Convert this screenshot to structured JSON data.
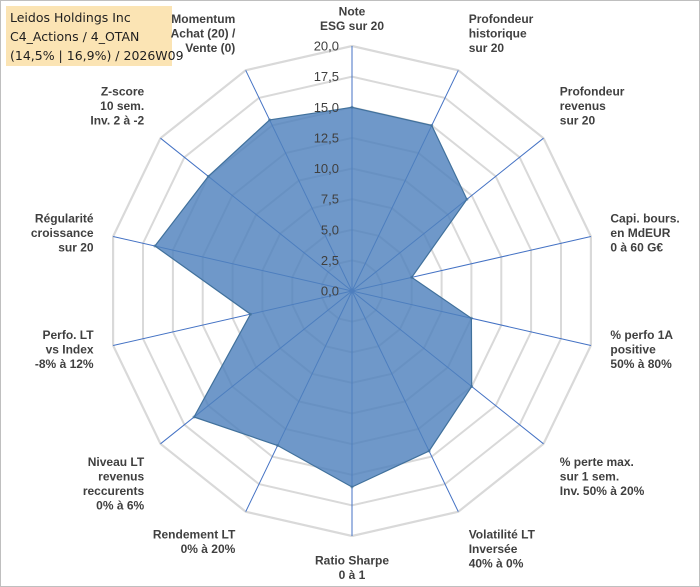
{
  "title": {
    "company": "Leidos Holdings Inc",
    "portfolio": "C4_Actions / 4_OTAN",
    "summary": "(14,5% | 16,9%) / 2026W09"
  },
  "chart_data": {
    "type": "radar",
    "rmin": 0,
    "rmax": 20,
    "ticks": [
      "0,0",
      "2,5",
      "5,0",
      "7,5",
      "10,0",
      "12,5",
      "15,0",
      "17,5",
      "20,0"
    ],
    "tick_values": [
      0,
      2.5,
      5,
      7.5,
      10,
      12.5,
      15,
      17.5,
      20
    ],
    "axes": [
      [
        "Note",
        "ESG sur 20"
      ],
      [
        "Profondeur",
        "historique",
        "sur 20"
      ],
      [
        "Profondeur",
        "revenus",
        "sur 20"
      ],
      [
        "Capi. bours.",
        "en MdEUR",
        "0 à 60 G€"
      ],
      [
        "% perfo 1A",
        "positive",
        "50% à 80%"
      ],
      [
        "% perte max.",
        "sur 1 sem.",
        "Inv. 50% à 20%"
      ],
      [
        "Volatilité LT",
        "Inversée",
        "40% à 0%"
      ],
      [
        "Ratio Sharpe",
        "0 à 1"
      ],
      [
        "Rendement LT",
        "0% à 20%"
      ],
      [
        "Niveau LT",
        "revenus",
        "reccurents",
        "0% à 6%"
      ],
      [
        "Perfo. LT",
        "vs Index",
        "-8% à 12%"
      ],
      [
        "Régularité",
        "croissance",
        "sur 20"
      ],
      [
        "Z-score",
        "10 sem.",
        "Inv. 2 à -2"
      ],
      [
        "Momentum",
        "Achat (20) /",
        "Vente (0)"
      ]
    ],
    "series": [
      {
        "name": "Leidos Holdings Inc",
        "values": [
          15,
          15,
          12,
          5,
          10,
          12.5,
          14.5,
          16,
          14,
          16.5,
          8.5,
          16.5,
          15,
          15.5
        ],
        "color": "#4f81bd"
      }
    ],
    "grid_color": "#d9d9d9",
    "spoke_color": "#4472c4"
  }
}
